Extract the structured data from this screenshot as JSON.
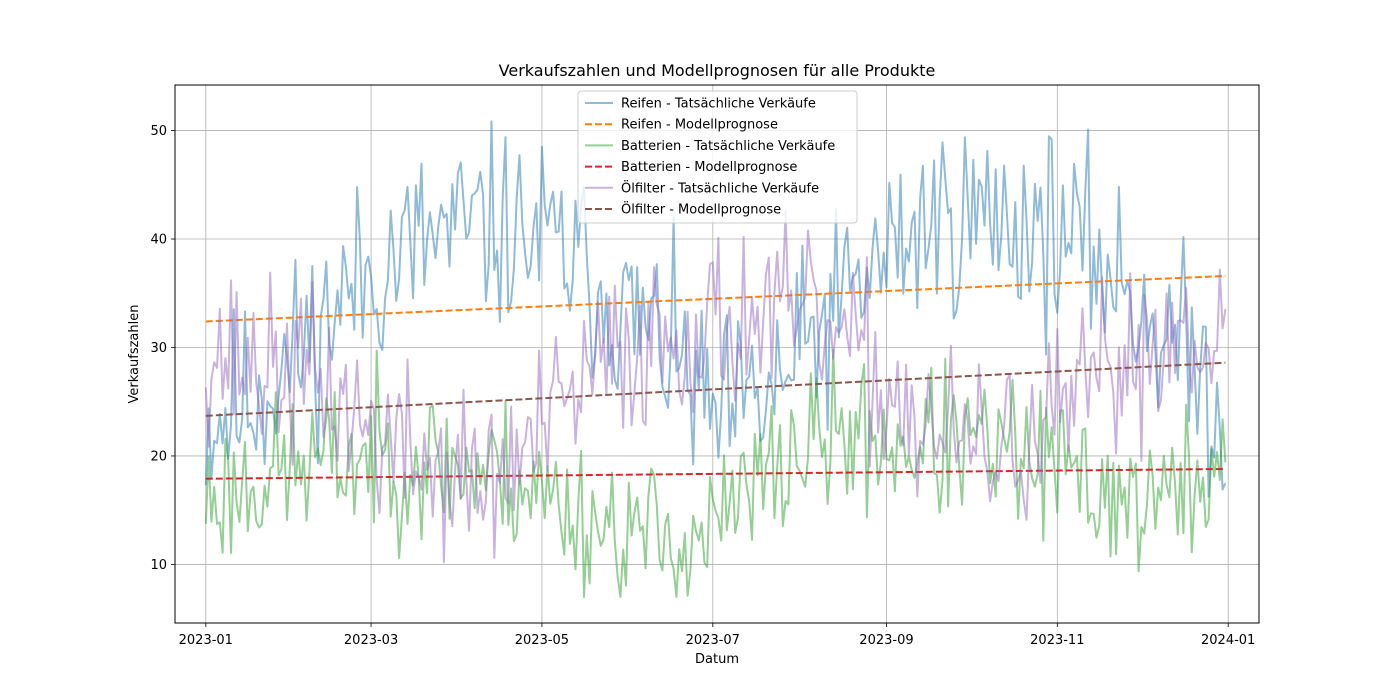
{
  "chart_data": {
    "type": "line",
    "title": "Verkaufszahlen und Modellprognosen für alle Produkte",
    "xlabel": "Datum",
    "ylabel": "Verkaufszahlen",
    "x_start": "2023-01-01",
    "x_end": "2023-12-31",
    "num_days": 365,
    "xlim_days": [
      -11,
      376
    ],
    "ylim": [
      4.6,
      54.2
    ],
    "grid": true,
    "legend_position": "top-center",
    "x_ticks": [
      {
        "label": "2023-01",
        "day": 0
      },
      {
        "label": "2023-03",
        "day": 59
      },
      {
        "label": "2023-05",
        "day": 120
      },
      {
        "label": "2023-07",
        "day": 181
      },
      {
        "label": "2023-09",
        "day": 243
      },
      {
        "label": "2023-11",
        "day": 304
      },
      {
        "label": "2024-01",
        "day": 365
      }
    ],
    "y_ticks": [
      10,
      20,
      30,
      40,
      50
    ],
    "series": [
      {
        "name": "Reifen - Tatsächliche Verkäufe",
        "color": "#1f77b4",
        "style": "solid",
        "opacity": 0.5,
        "keypoints": [
          [
            0,
            23
          ],
          [
            20,
            26
          ],
          [
            35,
            30
          ],
          [
            50,
            35
          ],
          [
            65,
            38
          ],
          [
            80,
            40
          ],
          [
            100,
            41
          ],
          [
            120,
            40
          ],
          [
            135,
            37
          ],
          [
            150,
            33
          ],
          [
            165,
            30
          ],
          [
            181,
            23
          ],
          [
            200,
            25
          ],
          [
            215,
            30
          ],
          [
            230,
            35
          ],
          [
            245,
            39
          ],
          [
            260,
            42
          ],
          [
            280,
            42
          ],
          [
            300,
            41
          ],
          [
            320,
            38
          ],
          [
            340,
            32
          ],
          [
            355,
            28
          ],
          [
            364,
            22
          ]
        ],
        "noise": 4.5,
        "seed": 11,
        "min": 12.6,
        "max": 51.8
      },
      {
        "name": "Reifen - Modellprognose",
        "color": "#ff7f0e",
        "style": "dashed",
        "linear": [
          32.4,
          36.6
        ]
      },
      {
        "name": "Batterien - Tatsächliche Verkäufe",
        "color": "#2ca02c",
        "style": "solid",
        "opacity": 0.5,
        "keypoints": [
          [
            0,
            16
          ],
          [
            30,
            19
          ],
          [
            60,
            20
          ],
          [
            90,
            19
          ],
          [
            110,
            18
          ],
          [
            130,
            15
          ],
          [
            150,
            13
          ],
          [
            170,
            12
          ],
          [
            181,
            13
          ],
          [
            200,
            18
          ],
          [
            215,
            21
          ],
          [
            230,
            22
          ],
          [
            250,
            21
          ],
          [
            270,
            21
          ],
          [
            290,
            20
          ],
          [
            310,
            18
          ],
          [
            330,
            16
          ],
          [
            345,
            16
          ],
          [
            364,
            20
          ]
        ],
        "noise": 3.5,
        "seed": 23,
        "min": 7,
        "max": 29.8
      },
      {
        "name": "Batterien - Modellprognose",
        "color": "#d62728",
        "style": "dashed",
        "linear": [
          17.9,
          18.8
        ]
      },
      {
        "name": "Ölfilter - Tatsächliche Verkäufe",
        "color": "#9467bd",
        "style": "solid",
        "opacity": 0.5,
        "keypoints": [
          [
            0,
            30
          ],
          [
            20,
            28
          ],
          [
            40,
            27
          ],
          [
            60,
            22
          ],
          [
            80,
            19
          ],
          [
            100,
            17
          ],
          [
            120,
            22
          ],
          [
            140,
            28
          ],
          [
            160,
            31
          ],
          [
            181,
            32
          ],
          [
            200,
            33
          ],
          [
            220,
            32
          ],
          [
            240,
            27
          ],
          [
            260,
            22
          ],
          [
            280,
            20
          ],
          [
            300,
            22
          ],
          [
            320,
            27
          ],
          [
            340,
            31
          ],
          [
            364,
            33
          ]
        ],
        "noise": 4,
        "seed": 37,
        "min": 10.2,
        "max": 42.6
      },
      {
        "name": "Ölfilter - Modellprognose",
        "color": "#8c564b",
        "style": "dashed",
        "linear": [
          23.7,
          28.6
        ]
      }
    ]
  }
}
